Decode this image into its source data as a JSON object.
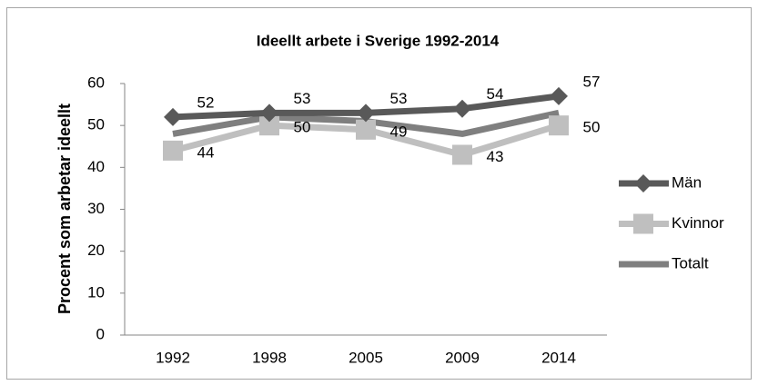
{
  "chart_data": {
    "type": "line",
    "title": "Ideellt arbete i Sverige 1992-2014",
    "y_label": "Procent som arbetar ideellt",
    "categories": [
      "1992",
      "1998",
      "2005",
      "2009",
      "2014"
    ],
    "series": [
      {
        "name": "Män",
        "color": "#595959",
        "marker": "diamond",
        "values": [
          52,
          53,
          53,
          54,
          57
        ]
      },
      {
        "name": "Kvinnor",
        "color": "#bfbfbf",
        "marker": "square",
        "values": [
          44,
          50,
          49,
          43,
          50
        ]
      },
      {
        "name": "Totalt",
        "color": "#7f7f7f",
        "marker": "none",
        "values": [
          48,
          52,
          51,
          48,
          53
        ]
      }
    ],
    "data_labels": [
      true,
      true,
      false
    ],
    "ylim": [
      0,
      60
    ],
    "yticks": [
      0,
      10,
      20,
      30,
      40,
      50,
      60
    ],
    "grid": false,
    "legend": "right"
  }
}
